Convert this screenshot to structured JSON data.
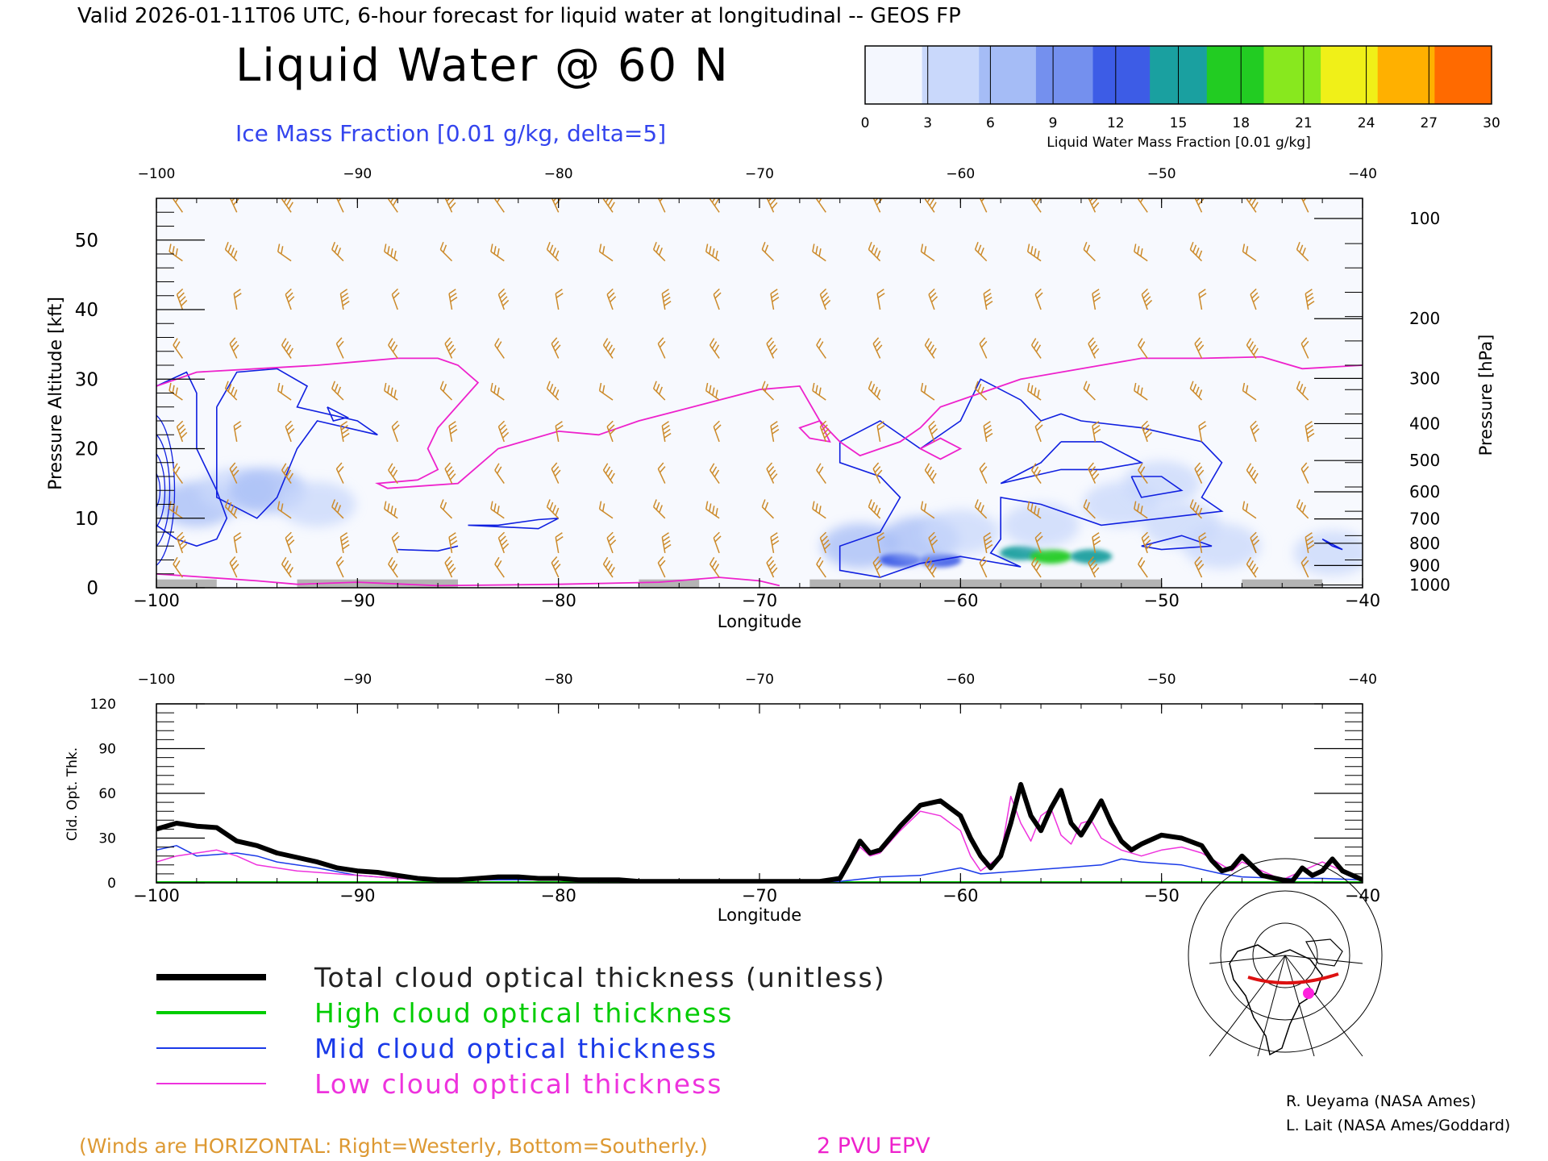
{
  "header": {
    "valid_line": "Valid 2026-01-11T06 UTC, 6-hour forecast for liquid water at longitudinal -- GEOS FP",
    "title": "Liquid Water @ 60 N",
    "subtitle": "Ice Mass Fraction [0.01 g/kg, delta=5]"
  },
  "colorbar": {
    "label": "Liquid Water Mass Fraction [0.01 g/kg]",
    "ticks": [
      "0",
      "3",
      "6",
      "9",
      "12",
      "15",
      "18",
      "21",
      "24",
      "27",
      "30"
    ],
    "colors": [
      "#f4f7fe",
      "#c9d8fb",
      "#a5bcf6",
      "#7490ee",
      "#3d5ce6",
      "#1aa0a0",
      "#22cc22",
      "#88e81e",
      "#f0f018",
      "#ffb000",
      "#ff6a00"
    ]
  },
  "colors": {
    "wind_barb": "#cc8a2a",
    "ice_contour": "#1020e0",
    "pv_contour": "#ee22cc",
    "terrain": "#b4b4b4",
    "total": "#000000",
    "high": "#00cc00",
    "mid": "#1a3ae8",
    "low": "#ee33dd"
  },
  "footer": {
    "winds_note": "(Winds are HORIZONTAL: Right=Westerly, Bottom=Southerly.)",
    "epv_note": "2 PVU EPV",
    "credit1": "R. Ueyama (NASA Ames)",
    "credit2": "L. Lait (NASA Ames/Goddard)"
  },
  "legend": [
    {
      "label": "Total cloud optical thickness (unitless)",
      "color": "#000000"
    },
    {
      "label": "High cloud optical thickness",
      "color": "#00cc00"
    },
    {
      "label": "Mid cloud optical thickness",
      "color": "#1a3ae8"
    },
    {
      "label": "Low cloud optical thickness",
      "color": "#ee33dd"
    }
  ],
  "chart_data": [
    {
      "type": "heatmap",
      "title": "Liquid Water @ 60 N",
      "xlabel": "Longitude",
      "ylabel": "Pressure Altitude [kft]",
      "ylabel_right": "Pressure [hPa]",
      "xlim": [
        -100,
        -40
      ],
      "ylim": [
        0,
        56
      ],
      "x_ticks": [
        -100,
        -90,
        -80,
        -70,
        -60,
        -50,
        -40
      ],
      "y_ticks": [
        0,
        10,
        20,
        30,
        40,
        50
      ],
      "pressure_ticks": [
        {
          "hpa": "100",
          "kft": 53.1
        },
        {
          "hpa": "200",
          "kft": 38.7
        },
        {
          "hpa": "300",
          "kft": 30.1
        },
        {
          "hpa": "400",
          "kft": 23.6
        },
        {
          "hpa": "500",
          "kft": 18.3
        },
        {
          "hpa": "600",
          "kft": 13.8
        },
        {
          "hpa": "700",
          "kft": 9.9
        },
        {
          "hpa": "800",
          "kft": 6.4
        },
        {
          "hpa": "900",
          "kft": 3.2
        },
        {
          "hpa": "1000",
          "kft": 0.4
        }
      ],
      "liquid_water_cells": [
        {
          "lon": -98,
          "alt": 12,
          "val": 6
        },
        {
          "lon": -96,
          "alt": 14,
          "val": 5
        },
        {
          "lon": -94.5,
          "alt": 14,
          "val": 6
        },
        {
          "lon": -92,
          "alt": 12,
          "val": 3
        },
        {
          "lon": -65,
          "alt": 6,
          "val": 8
        },
        {
          "lon": -63,
          "alt": 4,
          "val": 12
        },
        {
          "lon": -61,
          "alt": 4,
          "val": 13
        },
        {
          "lon": -62,
          "alt": 7,
          "val": 6
        },
        {
          "lon": -60,
          "alt": 8,
          "val": 3
        },
        {
          "lon": -57,
          "alt": 5,
          "val": 16
        },
        {
          "lon": -55.5,
          "alt": 4.5,
          "val": 19
        },
        {
          "lon": -53.5,
          "alt": 4.5,
          "val": 17
        },
        {
          "lon": -56,
          "alt": 9,
          "val": 5
        },
        {
          "lon": -52,
          "alt": 12,
          "val": 4
        },
        {
          "lon": -50,
          "alt": 15,
          "val": 4
        },
        {
          "lon": -49,
          "alt": 9,
          "val": 5
        },
        {
          "lon": -47,
          "alt": 6,
          "val": 4
        },
        {
          "lon": -41.5,
          "alt": 5,
          "val": 3
        }
      ],
      "ice_contours": [
        [
          [
            -100,
            29
          ],
          [
            -98.5,
            31
          ],
          [
            -98,
            28
          ],
          [
            -98,
            20
          ],
          [
            -97,
            14
          ],
          [
            -96.5,
            10
          ],
          [
            -97,
            7
          ],
          [
            -98,
            6
          ],
          [
            -99,
            7
          ],
          [
            -100,
            9
          ]
        ],
        [
          [
            -97,
            26
          ],
          [
            -96,
            31
          ],
          [
            -94,
            31.5
          ],
          [
            -92.5,
            29
          ],
          [
            -93,
            26
          ],
          [
            -90,
            24
          ],
          [
            -89,
            22
          ],
          [
            -92,
            24
          ],
          [
            -93,
            20
          ],
          [
            -94,
            13
          ],
          [
            -95,
            10
          ],
          [
            -97,
            13
          ],
          [
            -97,
            20
          ],
          [
            -97,
            26
          ]
        ],
        [
          [
            -91.5,
            26
          ],
          [
            -91.2,
            24
          ],
          [
            -90.5,
            24.5
          ],
          [
            -91.5,
            26
          ]
        ],
        [
          [
            -84.5,
            9
          ],
          [
            -83,
            9
          ],
          [
            -81,
            9.8
          ],
          [
            -80,
            10
          ],
          [
            -81,
            8.5
          ],
          [
            -84.5,
            9
          ]
        ],
        [
          [
            -88,
            5.5
          ],
          [
            -86,
            5.3
          ],
          [
            -85,
            6
          ]
        ],
        [
          [
            -66,
            21
          ],
          [
            -64,
            24
          ],
          [
            -62,
            20
          ],
          [
            -60,
            24
          ],
          [
            -59,
            30
          ],
          [
            -57,
            27
          ],
          [
            -56,
            24
          ],
          [
            -55,
            25
          ],
          [
            -54,
            24
          ],
          [
            -51,
            23
          ],
          [
            -48,
            21
          ],
          [
            -47,
            18
          ],
          [
            -48,
            13
          ],
          [
            -47,
            11
          ],
          [
            -50,
            10
          ],
          [
            -53,
            9
          ],
          [
            -55,
            11
          ],
          [
            -56,
            12
          ],
          [
            -58,
            13
          ],
          [
            -58,
            7
          ],
          [
            -58.5,
            5
          ],
          [
            -57,
            3
          ],
          [
            -59,
            4
          ],
          [
            -60,
            4.5
          ],
          [
            -62,
            3.5
          ],
          [
            -63,
            2.5
          ],
          [
            -64,
            1.5
          ],
          [
            -66,
            2.5
          ],
          [
            -66,
            6
          ],
          [
            -64,
            8
          ],
          [
            -63,
            13
          ],
          [
            -64,
            16
          ],
          [
            -66,
            18
          ],
          [
            -66,
            21
          ]
        ],
        [
          [
            -55,
            21
          ],
          [
            -56,
            18
          ],
          [
            -58,
            15
          ],
          [
            -55,
            17
          ],
          [
            -53,
            17
          ],
          [
            -51,
            18
          ],
          [
            -53,
            21
          ],
          [
            -55,
            21
          ]
        ],
        [
          [
            -51.5,
            16
          ],
          [
            -51,
            13
          ],
          [
            -49,
            14
          ],
          [
            -50,
            16
          ],
          [
            -51.5,
            16
          ]
        ],
        [
          [
            -51,
            6
          ],
          [
            -50,
            5.5
          ],
          [
            -47.5,
            6
          ],
          [
            -49,
            7.5
          ],
          [
            -51,
            6
          ]
        ],
        [
          [
            -42,
            7
          ],
          [
            -41.5,
            6
          ],
          [
            -41,
            5.5
          ],
          [
            -42,
            7
          ]
        ]
      ],
      "pv_contour": [
        [
          -100,
          29
        ],
        [
          -98,
          31
        ],
        [
          -95,
          31.5
        ],
        [
          -92,
          32
        ],
        [
          -90,
          32.5
        ],
        [
          -88,
          33
        ],
        [
          -86,
          33
        ],
        [
          -85,
          32
        ],
        [
          -84,
          29.5
        ],
        [
          -86,
          23
        ],
        [
          -86.5,
          20
        ],
        [
          -86,
          17
        ],
        [
          -87,
          15.5
        ],
        [
          -89,
          15
        ],
        [
          -88.5,
          14.3
        ],
        [
          -85,
          15
        ],
        [
          -83,
          20
        ],
        [
          -80,
          22.5
        ],
        [
          -78,
          22
        ],
        [
          -76,
          24
        ],
        [
          -74,
          25.5
        ],
        [
          -72,
          27
        ],
        [
          -70,
          28.5
        ],
        [
          -68,
          29
        ],
        [
          -67,
          24
        ],
        [
          -66,
          21
        ],
        [
          -65,
          19
        ],
        [
          -63,
          21
        ],
        [
          -62,
          23
        ],
        [
          -61,
          26
        ],
        [
          -59,
          28
        ],
        [
          -57,
          30
        ],
        [
          -55,
          31
        ],
        [
          -53,
          32
        ],
        [
          -51,
          33
        ],
        [
          -48,
          33
        ],
        [
          -45,
          33.2
        ],
        [
          -43,
          31.5
        ],
        [
          -40,
          32
        ]
      ],
      "pv_low": [
        [
          -100,
          2
        ],
        [
          -95,
          1
        ],
        [
          -93,
          0.5
        ],
        [
          -90,
          0.8
        ],
        [
          -86,
          0.3
        ],
        [
          -80,
          0.5
        ],
        [
          -75,
          0.8
        ],
        [
          -72,
          1.5
        ],
        [
          -70,
          1
        ],
        [
          -69,
          0.3
        ]
      ],
      "terrain_segments": [
        [
          -100,
          -97
        ],
        [
          -93,
          -85
        ],
        [
          -76,
          -73
        ],
        [
          -67.5,
          -50
        ],
        [
          -46,
          -42
        ]
      ],
      "wind_columns": [
        -98.7,
        -96,
        -93.3,
        -90.7,
        -88,
        -85.3,
        -82.7,
        -80,
        -77.3,
        -74.7,
        -72,
        -69.3,
        -66.7,
        -64,
        -61.3,
        -58.7,
        -56,
        -53.3,
        -50.7,
        -48,
        -45.3,
        -42.7
      ],
      "wind_levels": [
        54,
        47,
        40,
        33,
        27,
        21,
        15,
        10,
        5,
        1.5
      ]
    },
    {
      "type": "line",
      "xlabel": "Longitude",
      "ylabel": "Cld. Opt. Thk.",
      "xlim": [
        -100,
        -40
      ],
      "ylim": [
        0,
        120
      ],
      "x_ticks": [
        -100,
        -90,
        -80,
        -70,
        -60,
        -50,
        -40
      ],
      "y_ticks": [
        0,
        30,
        60,
        90,
        120
      ],
      "series": [
        {
          "name": "Total cloud optical thickness (unitless)",
          "x": [
            -100,
            -99,
            -98,
            -97,
            -96,
            -95,
            -94,
            -93,
            -92,
            -91,
            -90,
            -89,
            -88,
            -87,
            -86,
            -85,
            -84,
            -83,
            -82,
            -81,
            -80,
            -79,
            -78,
            -77,
            -76,
            -75,
            -74,
            -73,
            -72,
            -71,
            -70,
            -69,
            -68,
            -67,
            -66,
            -65.5,
            -65,
            -64.5,
            -64,
            -63,
            -62,
            -61,
            -60,
            -59.5,
            -59,
            -58.5,
            -58,
            -57.5,
            -57,
            -56.5,
            -56,
            -55.5,
            -55,
            -54.5,
            -54,
            -53.5,
            -53,
            -52.5,
            -52,
            -51.5,
            -51,
            -50,
            -49,
            -48,
            -47.5,
            -47,
            -46.5,
            -46,
            -45,
            -44,
            -43.5,
            -43,
            -42.5,
            -42,
            -41.5,
            -41,
            -40
          ],
          "y": [
            36,
            40,
            38,
            37,
            28,
            25,
            20,
            17,
            14,
            10,
            8,
            7,
            5,
            3,
            2,
            2,
            3,
            4,
            4,
            3,
            3,
            2,
            2,
            2,
            1,
            1,
            1,
            1,
            1,
            1,
            1,
            1,
            1,
            1,
            3,
            15,
            28,
            20,
            22,
            38,
            52,
            55,
            45,
            30,
            18,
            10,
            18,
            40,
            66,
            45,
            35,
            50,
            62,
            40,
            32,
            43,
            55,
            40,
            28,
            22,
            26,
            32,
            30,
            25,
            15,
            8,
            10,
            18,
            5,
            2,
            1,
            10,
            5,
            8,
            16,
            8,
            2
          ],
          "values_note": ""
        },
        {
          "name": "High cloud optical thickness",
          "x": [
            -100,
            -40
          ],
          "y": [
            0,
            0
          ]
        },
        {
          "name": "Mid cloud optical thickness",
          "x": [
            -100,
            -99,
            -98,
            -96,
            -95,
            -94,
            -92,
            -90,
            -88,
            -86,
            -80,
            -70,
            -66,
            -64,
            -62,
            -60,
            -59,
            -57,
            -55,
            -53,
            -52,
            -51,
            -49,
            -47,
            -46,
            -44,
            -42,
            -40
          ],
          "y": [
            22,
            25,
            18,
            20,
            18,
            14,
            10,
            5,
            3,
            2,
            2,
            1,
            1,
            4,
            5,
            10,
            6,
            8,
            10,
            12,
            16,
            14,
            12,
            6,
            4,
            3,
            3,
            2
          ]
        },
        {
          "name": "Low cloud optical thickness",
          "x": [
            -100,
            -99,
            -98,
            -97,
            -96,
            -95,
            -94,
            -93,
            -92,
            -90,
            -88,
            -86,
            -84,
            -82,
            -80,
            -78,
            -70,
            -67,
            -66,
            -65,
            -64.5,
            -64,
            -63,
            -62,
            -61,
            -60,
            -59.5,
            -59,
            -58,
            -57.5,
            -57,
            -56.5,
            -56,
            -55.5,
            -55,
            -54.5,
            -54,
            -53.5,
            -53,
            -52,
            -51,
            -50,
            -49,
            -48,
            -47,
            -46.5,
            -46,
            -44,
            -43,
            -42,
            -41,
            -40
          ],
          "y": [
            14,
            18,
            20,
            22,
            18,
            12,
            10,
            8,
            7,
            5,
            3,
            2,
            3,
            3,
            3,
            2,
            1,
            1,
            3,
            24,
            18,
            20,
            35,
            48,
            45,
            35,
            18,
            8,
            18,
            58,
            40,
            28,
            45,
            50,
            32,
            26,
            40,
            42,
            30,
            22,
            18,
            22,
            24,
            20,
            12,
            8,
            14,
            2,
            8,
            14,
            8,
            2
          ]
        }
      ]
    }
  ]
}
